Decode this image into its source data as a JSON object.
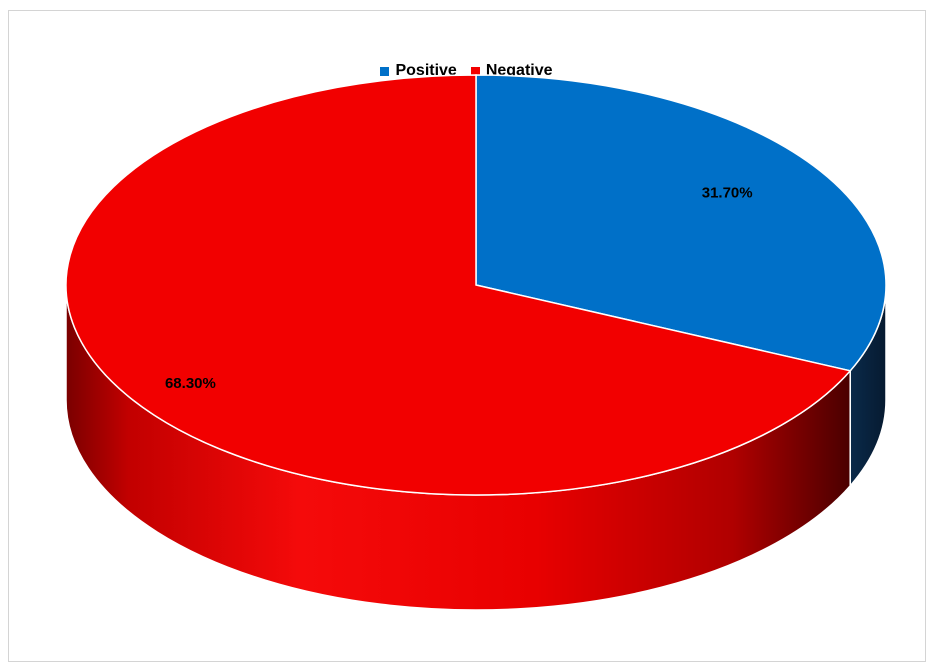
{
  "chart_data": {
    "type": "pie",
    "style": "3d",
    "categories": [
      "Positive",
      "Negative"
    ],
    "values": [
      31.7,
      68.3
    ],
    "data_labels": [
      "31.70%",
      "68.30%"
    ],
    "colors": [
      "#0070C8",
      "#F20000"
    ],
    "legend": "top-center"
  }
}
